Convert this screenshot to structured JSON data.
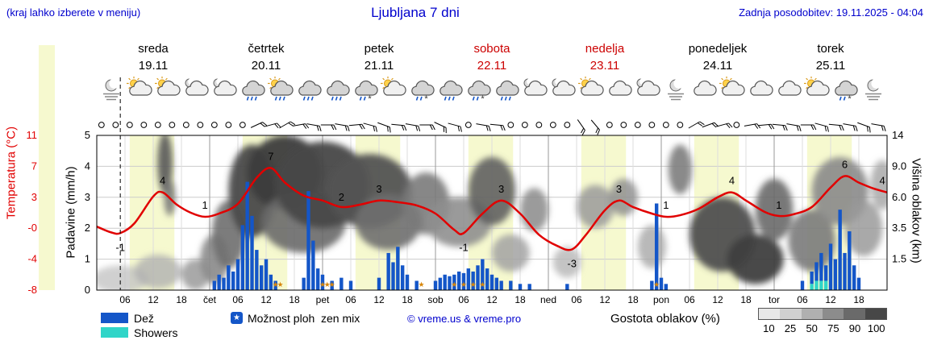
{
  "header": {
    "hint": "(kraj lahko izberete v meniju)",
    "title": "Ljubljana 7 dni",
    "updated": "Zadnja posodobitev: 19.11.2025 - 04:04"
  },
  "axis": {
    "temp_label": "Temperatura (°C)",
    "precip_label": "Padavine (mm/h)",
    "cloud_label": "Višina oblakov (km)",
    "temp_ticks": [
      "11",
      "7",
      "3",
      "-0",
      "-4",
      "-8"
    ],
    "precip_ticks": [
      "5",
      "4",
      "3",
      "2",
      "1",
      "0"
    ],
    "cloud_ticks": [
      "14",
      "9.0",
      "6.0",
      "3.5",
      "1.5",
      ""
    ]
  },
  "days": [
    {
      "name": "sreda",
      "date": "19.11",
      "weekend": false,
      "icons": [
        "mist-moon",
        "sun-cloud",
        "sun-cloud",
        "moon-cloud"
      ]
    },
    {
      "name": "četrtek",
      "date": "20.11",
      "weekend": false,
      "icons": [
        "moon-cloud",
        "rain-cloud",
        "sun-rain-cloud",
        "rain-cloud"
      ]
    },
    {
      "name": "petek",
      "date": "21.11",
      "weekend": false,
      "icons": [
        "rain-cloud",
        "sleet-cloud",
        "sun-cloud",
        "sleet-cloud"
      ]
    },
    {
      "name": "sobota",
      "date": "22.11",
      "weekend": true,
      "icons": [
        "rain-cloud",
        "sleet-cloud",
        "rain-cloud",
        "moon-cloud"
      ]
    },
    {
      "name": "nedelja",
      "date": "23.11",
      "weekend": true,
      "icons": [
        "moon-cloud",
        "sun-cloud",
        "cloud",
        "moon-cloud"
      ]
    },
    {
      "name": "ponedeljek",
      "date": "24.11",
      "weekend": false,
      "icons": [
        "mist-moon",
        "cloud",
        "sun-cloud",
        "cloud"
      ]
    },
    {
      "name": "torek",
      "date": "25.11",
      "weekend": false,
      "icons": [
        "cloud",
        "sun-cloud",
        "sleet-cloud",
        "mist-moon"
      ]
    }
  ],
  "xticks": [
    {
      "t": 6,
      "label": "06"
    },
    {
      "t": 12,
      "label": "12"
    },
    {
      "t": 18,
      "label": "18"
    },
    {
      "t": 24,
      "label": "čet"
    },
    {
      "t": 30,
      "label": "06"
    },
    {
      "t": 36,
      "label": "12"
    },
    {
      "t": 42,
      "label": "18"
    },
    {
      "t": 48,
      "label": "pet"
    },
    {
      "t": 54,
      "label": "06"
    },
    {
      "t": 60,
      "label": "12"
    },
    {
      "t": 66,
      "label": "18"
    },
    {
      "t": 72,
      "label": "sob"
    },
    {
      "t": 78,
      "label": "06"
    },
    {
      "t": 84,
      "label": "12"
    },
    {
      "t": 90,
      "label": "18"
    },
    {
      "t": 96,
      "label": "ned"
    },
    {
      "t": 102,
      "label": "06"
    },
    {
      "t": 108,
      "label": "12"
    },
    {
      "t": 114,
      "label": "18"
    },
    {
      "t": 120,
      "label": "pon"
    },
    {
      "t": 126,
      "label": "06"
    },
    {
      "t": 132,
      "label": "12"
    },
    {
      "t": 138,
      "label": "18"
    },
    {
      "t": 144,
      "label": "tor"
    },
    {
      "t": 150,
      "label": "06"
    },
    {
      "t": 156,
      "label": "12"
    },
    {
      "t": 162,
      "label": "18"
    }
  ],
  "legend": {
    "rain": "Dež",
    "showers": "Showers",
    "chance": "Možnost ploh",
    "mix": "zen mix",
    "copyright": "© vreme.us & vreme.pro",
    "density": "Gostota oblakov (%)",
    "density_ticks": [
      "10",
      "25",
      "50",
      "75",
      "90",
      "100"
    ],
    "density_colors": [
      "#e8e8e8",
      "#d0d0d0",
      "#b0b0b0",
      "#8c8c8c",
      "#6a6a6a",
      "#474747"
    ]
  },
  "colors": {
    "temp": "#e10000",
    "rain": "#1456c8",
    "showers": "#30d5c8",
    "band": "#f6f9cf",
    "title": "#0000cd",
    "weekend": "#cc0000",
    "star": "#d8860b"
  },
  "chart_data": {
    "type": "meteogram",
    "x_hours_range": [
      0,
      168
    ],
    "start_date": "19.11",
    "now_t": 5,
    "daylight": [
      7,
      16.5
    ],
    "temp_axis_range": [
      -8,
      11
    ],
    "precip_axis_range": [
      0,
      5
    ],
    "cloud_axis_km": [
      0,
      1.5,
      3.5,
      6.0,
      9.0,
      14
    ],
    "temperature": {
      "points": [
        [
          0,
          -0.2
        ],
        [
          3,
          -0.9
        ],
        [
          5,
          -1
        ],
        [
          8,
          0.2
        ],
        [
          12,
          3.5
        ],
        [
          14,
          4
        ],
        [
          17,
          2.5
        ],
        [
          20,
          1.5
        ],
        [
          23,
          1
        ],
        [
          26,
          1.4
        ],
        [
          30,
          2.6
        ],
        [
          34,
          5.8
        ],
        [
          37,
          7
        ],
        [
          40,
          5.2
        ],
        [
          44,
          3.6
        ],
        [
          48,
          3
        ],
        [
          52,
          2.2
        ],
        [
          56,
          2.5
        ],
        [
          60,
          3
        ],
        [
          64,
          2.8
        ],
        [
          68,
          2.4
        ],
        [
          72,
          1.4
        ],
        [
          76,
          -0.6
        ],
        [
          78,
          -1
        ],
        [
          82,
          1.4
        ],
        [
          86,
          3
        ],
        [
          90,
          1.4
        ],
        [
          94,
          -1.2
        ],
        [
          98,
          -2.6
        ],
        [
          101,
          -3
        ],
        [
          104,
          -1.2
        ],
        [
          108,
          1.8
        ],
        [
          111,
          3
        ],
        [
          114,
          2.2
        ],
        [
          118,
          1.4
        ],
        [
          121,
          1
        ],
        [
          124,
          1.2
        ],
        [
          128,
          2
        ],
        [
          132,
          3.4
        ],
        [
          135,
          4
        ],
        [
          138,
          3
        ],
        [
          142,
          1.6
        ],
        [
          145,
          1.1
        ],
        [
          148,
          1.3
        ],
        [
          152,
          2.2
        ],
        [
          156,
          4.6
        ],
        [
          159,
          6
        ],
        [
          162,
          5.2
        ],
        [
          165,
          4.5
        ],
        [
          168,
          4
        ]
      ]
    },
    "temp_labels": [
      [
        5,
        "-1"
      ],
      [
        14,
        "4"
      ],
      [
        23,
        "1"
      ],
      [
        37,
        "7"
      ],
      [
        52,
        "2"
      ],
      [
        60,
        "3"
      ],
      [
        78,
        "-1"
      ],
      [
        86,
        "3"
      ],
      [
        101,
        "-3"
      ],
      [
        111,
        "3"
      ],
      [
        121,
        "1"
      ],
      [
        135,
        "4"
      ],
      [
        145,
        "1"
      ],
      [
        159,
        "6"
      ],
      [
        167,
        "4"
      ]
    ],
    "precipitation": [
      [
        25,
        0.3,
        0
      ],
      [
        26,
        0.5,
        0
      ],
      [
        27,
        0.4,
        0
      ],
      [
        28,
        0.8,
        0
      ],
      [
        29,
        0.6,
        0
      ],
      [
        30,
        1.0,
        0
      ],
      [
        31,
        2.1,
        0
      ],
      [
        32,
        3.5,
        0
      ],
      [
        33,
        2.4,
        0
      ],
      [
        34,
        1.3,
        0
      ],
      [
        35,
        0.8,
        0
      ],
      [
        36,
        1.0,
        0
      ],
      [
        37,
        0.5,
        0
      ],
      [
        38,
        0.3,
        0
      ],
      [
        44,
        0.4,
        0
      ],
      [
        45,
        3.2,
        0
      ],
      [
        46,
        1.6,
        0
      ],
      [
        47,
        0.7,
        0
      ],
      [
        48,
        0.5,
        0
      ],
      [
        50,
        0.3,
        0
      ],
      [
        52,
        0.4,
        0
      ],
      [
        54,
        0.3,
        0
      ],
      [
        60,
        0.4,
        0
      ],
      [
        62,
        1.2,
        0
      ],
      [
        63,
        0.9,
        0
      ],
      [
        64,
        1.4,
        0
      ],
      [
        65,
        0.8,
        0
      ],
      [
        66,
        0.5,
        0
      ],
      [
        68,
        0.3,
        0
      ],
      [
        72,
        0.3,
        0
      ],
      [
        73,
        0.4,
        0
      ],
      [
        74,
        0.5,
        0
      ],
      [
        75,
        0.45,
        0
      ],
      [
        76,
        0.5,
        0
      ],
      [
        77,
        0.6,
        0
      ],
      [
        78,
        0.55,
        0
      ],
      [
        79,
        0.7,
        0
      ],
      [
        80,
        0.6,
        0
      ],
      [
        81,
        0.8,
        0
      ],
      [
        82,
        1.0,
        0
      ],
      [
        83,
        0.7,
        0
      ],
      [
        84,
        0.5,
        0
      ],
      [
        85,
        0.4,
        0
      ],
      [
        86,
        0.3,
        0
      ],
      [
        88,
        0.3,
        0
      ],
      [
        90,
        0.2,
        0
      ],
      [
        92,
        0.2,
        0
      ],
      [
        100,
        0.2,
        0
      ],
      [
        118,
        0.3,
        0
      ],
      [
        119,
        2.8,
        0
      ],
      [
        120,
        0.4,
        0
      ],
      [
        121,
        0.2,
        0
      ],
      [
        150,
        0.3,
        0
      ],
      [
        152,
        0.6,
        0.2
      ],
      [
        153,
        0.9,
        0.3
      ],
      [
        154,
        1.2,
        0.3
      ],
      [
        155,
        0.8,
        0.3
      ],
      [
        156,
        1.5,
        0
      ],
      [
        157,
        1.0,
        0
      ],
      [
        158,
        2.6,
        0
      ],
      [
        159,
        1.2,
        0
      ],
      [
        160,
        1.9,
        0
      ],
      [
        161,
        0.8,
        0
      ],
      [
        162,
        0.4,
        0
      ]
    ],
    "stars": [
      38,
      39,
      48,
      49,
      50,
      69,
      76,
      78,
      80,
      82,
      119
    ],
    "wind": [
      [
        "c",
        1
      ],
      [
        "c",
        4
      ],
      [
        "c",
        7
      ],
      [
        "c",
        10
      ],
      [
        "c",
        13
      ],
      [
        "c",
        16
      ],
      [
        "c",
        19
      ],
      [
        "c",
        22
      ],
      [
        "c",
        25
      ],
      [
        "c",
        28
      ],
      [
        "c",
        31
      ],
      [
        "b",
        34,
        65
      ],
      [
        "b",
        37,
        75
      ],
      [
        "b",
        40,
        60
      ],
      [
        "b",
        43,
        80
      ],
      [
        "b",
        46,
        100
      ],
      [
        "b",
        49,
        90
      ],
      [
        "b",
        52,
        100
      ],
      [
        "b",
        55,
        85
      ],
      [
        "b",
        58,
        105
      ],
      [
        "b",
        61,
        110
      ],
      [
        "b",
        64,
        95
      ],
      [
        "b",
        67,
        100
      ],
      [
        "b",
        70,
        90
      ],
      [
        "b",
        73,
        115
      ],
      [
        "b",
        76,
        105
      ],
      [
        "c",
        79
      ],
      [
        "b",
        82,
        100
      ],
      [
        "b",
        85,
        95
      ],
      [
        "c",
        88
      ],
      [
        "c",
        91
      ],
      [
        "c",
        94
      ],
      [
        "c",
        97
      ],
      [
        "c",
        100
      ],
      [
        "b",
        103,
        145
      ],
      [
        "b",
        106,
        140
      ],
      [
        "c",
        109
      ],
      [
        "c",
        112
      ],
      [
        "c",
        115
      ],
      [
        "c",
        118
      ],
      [
        "c",
        121
      ],
      [
        "c",
        124
      ],
      [
        "b",
        127,
        60
      ],
      [
        "b",
        130,
        70
      ],
      [
        "b",
        133,
        75
      ],
      [
        "c",
        136
      ],
      [
        "b",
        139,
        80
      ],
      [
        "b",
        142,
        85
      ],
      [
        "b",
        145,
        95
      ],
      [
        "b",
        148,
        100
      ],
      [
        "b",
        151,
        90
      ],
      [
        "b",
        154,
        105
      ],
      [
        "b",
        157,
        95
      ],
      [
        "b",
        160,
        100
      ],
      [
        "b",
        163,
        110
      ],
      [
        "b",
        166,
        100
      ]
    ],
    "clouds": [
      {
        "t": 5,
        "rt": 6,
        "lev": 0.35,
        "rlev": 0.45,
        "f": "#c4c4c4",
        "o": 0.8
      },
      {
        "t": 13,
        "rt": 5,
        "lev": 0.6,
        "rlev": 0.55,
        "f": "#b0b0b0",
        "o": 0.8
      },
      {
        "t": 14.5,
        "rt": 1.6,
        "lev": 4.1,
        "rlev": 1.0,
        "f": "#565656",
        "o": 0.9
      },
      {
        "t": 15.5,
        "rt": 1.2,
        "lev": 3.0,
        "rlev": 0.6,
        "f": "#787878",
        "o": 0.9
      },
      {
        "t": 21,
        "rt": 3,
        "lev": 0.5,
        "rlev": 0.5,
        "f": "#9a9a9a",
        "o": 0.85
      },
      {
        "t": 25,
        "rt": 3,
        "lev": 1.0,
        "rlev": 0.8,
        "f": "#8a8a8a",
        "o": 0.9
      },
      {
        "t": 28,
        "rt": 3.5,
        "lev": 1.8,
        "rlev": 1.1,
        "f": "#6f6f6f",
        "o": 0.9
      },
      {
        "t": 33,
        "rt": 5,
        "lev": 3.2,
        "rlev": 1.5,
        "f": "#4a4a4a",
        "o": 0.95
      },
      {
        "t": 40,
        "rt": 8,
        "lev": 3.8,
        "rlev": 1.2,
        "f": "#3c3c3c",
        "o": 0.95
      },
      {
        "t": 44,
        "rt": 9,
        "lev": 2.2,
        "rlev": 1.0,
        "f": "#6a6a6a",
        "o": 0.9
      },
      {
        "t": 48,
        "rt": 10,
        "lev": 3.4,
        "rlev": 1.4,
        "f": "#474747",
        "o": 0.95
      },
      {
        "t": 58,
        "rt": 9,
        "lev": 3.2,
        "rlev": 1.2,
        "f": "#535353",
        "o": 0.95
      },
      {
        "t": 62,
        "rt": 7,
        "lev": 2.2,
        "rlev": 0.9,
        "f": "#6f6f6f",
        "o": 0.9
      },
      {
        "t": 70,
        "rt": 5,
        "lev": 2.8,
        "rlev": 1.0,
        "f": "#7a7a7a",
        "o": 0.9
      },
      {
        "t": 77,
        "rt": 7,
        "lev": 2.2,
        "rlev": 0.8,
        "f": "#8f8f8f",
        "o": 0.9
      },
      {
        "t": 84,
        "rt": 5,
        "lev": 3.2,
        "rlev": 1.1,
        "f": "#5f5f5f",
        "o": 0.9
      },
      {
        "t": 88,
        "rt": 4,
        "lev": 1.2,
        "rlev": 0.6,
        "f": "#a2a2a2",
        "o": 0.85
      },
      {
        "t": 93,
        "rt": 3,
        "lev": 2.6,
        "rlev": 0.7,
        "f": "#8a8a8a",
        "o": 0.85
      },
      {
        "t": 100,
        "rt": 3,
        "lev": 0.9,
        "rlev": 0.5,
        "f": "#b5b5b5",
        "o": 0.8
      },
      {
        "t": 106,
        "rt": 4,
        "lev": 2.7,
        "rlev": 0.7,
        "f": "#9a9a9a",
        "o": 0.85
      },
      {
        "t": 112,
        "rt": 3,
        "lev": 3.0,
        "rlev": 0.6,
        "f": "#8f8f8f",
        "o": 0.85
      },
      {
        "t": 118,
        "rt": 3,
        "lev": 1.4,
        "rlev": 0.7,
        "f": "#a8a8a8",
        "o": 0.8
      },
      {
        "t": 124,
        "rt": 2.5,
        "lev": 3.9,
        "rlev": 0.8,
        "f": "#7d7d7d",
        "o": 0.9
      },
      {
        "t": 133,
        "rt": 7,
        "lev": 1.8,
        "rlev": 1.2,
        "f": "#4f4f4f",
        "o": 0.95
      },
      {
        "t": 140,
        "rt": 6,
        "lev": 1.0,
        "rlev": 0.8,
        "f": "#3f3f3f",
        "o": 0.95
      },
      {
        "t": 144,
        "rt": 4,
        "lev": 2.6,
        "rlev": 1.0,
        "f": "#6a6a6a",
        "o": 0.9
      },
      {
        "t": 152,
        "rt": 5,
        "lev": 1.6,
        "rlev": 1.0,
        "f": "#7a7a7a",
        "o": 0.9
      },
      {
        "t": 158,
        "rt": 6,
        "lev": 3.2,
        "rlev": 1.1,
        "f": "#8a8a8a",
        "o": 0.9
      },
      {
        "t": 163,
        "rt": 4,
        "lev": 2.0,
        "rlev": 0.9,
        "f": "#9a9a9a",
        "o": 0.85
      },
      {
        "t": 167,
        "rt": 2.5,
        "lev": 3.4,
        "rlev": 0.8,
        "f": "#a8a8a8",
        "o": 0.85
      }
    ]
  }
}
